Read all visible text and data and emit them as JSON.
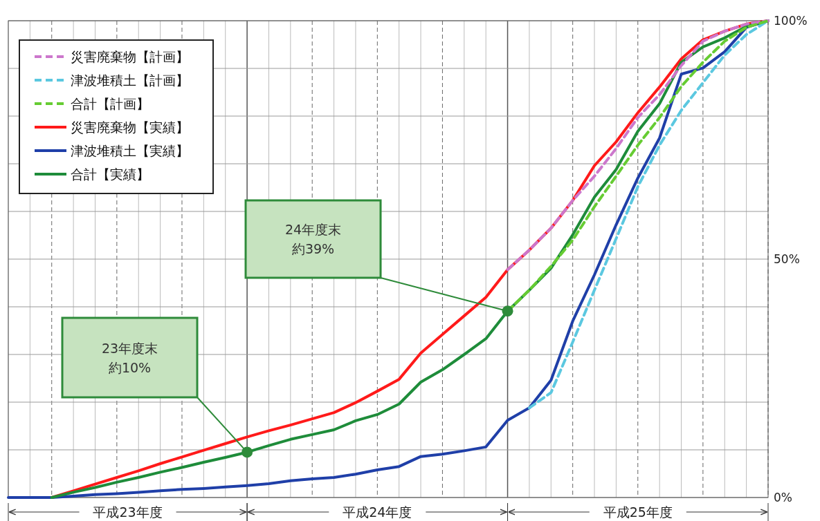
{
  "chart_data": {
    "type": "line",
    "categories": [
      null,
      null,
      null,
      null,
      null,
      null,
      null,
      null,
      null,
      null,
      null,
      null,
      null,
      null,
      null,
      null,
      null,
      null,
      null,
      null,
      null,
      null,
      null,
      null,
      null,
      null,
      null,
      null,
      null,
      null,
      null,
      null,
      null,
      null,
      null,
      null
    ],
    "ylim": [
      0,
      100
    ],
    "yticks": [
      {
        "value": 0,
        "label": "0%"
      },
      {
        "value": 10,
        "label": null
      },
      {
        "value": 20,
        "label": null
      },
      {
        "value": 30,
        "label": null
      },
      {
        "value": 40,
        "label": null
      },
      {
        "value": 50,
        "label": "50%"
      },
      {
        "value": 60,
        "label": null
      },
      {
        "value": 70,
        "label": null
      },
      {
        "value": 80,
        "label": null
      },
      {
        "value": 90,
        "label": null
      },
      {
        "value": 100,
        "label": "100%"
      }
    ],
    "grid": true,
    "legend": "top left",
    "line_style": "solid",
    "series": [
      {
        "name": "災害廃棄物【計画】",
        "color": "#cc77cc",
        "line_style": "dashed",
        "values": [
          null,
          null,
          null,
          null,
          null,
          null,
          null,
          null,
          null,
          null,
          null,
          null,
          null,
          null,
          null,
          null,
          null,
          null,
          null,
          null,
          null,
          null,
          null,
          47.8,
          51.9,
          56.5,
          62.3,
          67.4,
          73.2,
          79.7,
          84.5,
          90.6,
          95.7,
          97.8,
          99.3,
          100
        ]
      },
      {
        "name": "津波堆積土【計画】",
        "color": "#5bc8e0",
        "line_style": "dashed",
        "values": [
          null,
          null,
          null,
          null,
          null,
          null,
          null,
          null,
          null,
          null,
          null,
          null,
          null,
          null,
          null,
          null,
          null,
          null,
          null,
          null,
          null,
          null,
          null,
          null,
          18.8,
          22,
          32.6,
          43.5,
          54.3,
          65.2,
          73.9,
          81.2,
          87,
          92.8,
          97.1,
          100
        ]
      },
      {
        "name": "合計【計画】",
        "color": "#66cc33",
        "line_style": "dashed",
        "values": [
          null,
          null,
          null,
          null,
          null,
          null,
          null,
          null,
          null,
          null,
          null,
          null,
          null,
          null,
          null,
          null,
          null,
          null,
          null,
          null,
          null,
          null,
          null,
          39.1,
          43.5,
          48.5,
          54,
          61,
          67.4,
          73.9,
          79.7,
          86.2,
          91.3,
          95.7,
          98.6,
          100
        ]
      },
      {
        "name": "災害廃棄物【実績】",
        "color": "#ff1a1a",
        "values": [
          null,
          null,
          0,
          1.4,
          2.8,
          4.2,
          5.6,
          7.1,
          8.5,
          9.9,
          11.3,
          12.7,
          14,
          15.2,
          16.5,
          17.8,
          19.9,
          22.3,
          24.8,
          30.3,
          34.2,
          38.1,
          42,
          47.8,
          51.9,
          56.5,
          62.3,
          69.6,
          74.6,
          80.7,
          86.1,
          92,
          96,
          97.8,
          99.3,
          100
        ]
      },
      {
        "name": "津波堆積土【実績】",
        "color": "#1f3fa8",
        "values": [
          0,
          0,
          0,
          0.3,
          0.6,
          0.8,
          1.1,
          1.4,
          1.7,
          1.9,
          2.2,
          2.5,
          2.9,
          3.5,
          3.9,
          4.2,
          4.9,
          5.8,
          6.5,
          8.6,
          9.1,
          9.8,
          10.6,
          16.2,
          18.8,
          24.6,
          37,
          46.7,
          57.2,
          67,
          75.4,
          88.8,
          90.1,
          93.5,
          98.6,
          100
        ]
      },
      {
        "name": "合計【実績】",
        "color": "#1e8c3a",
        "values": [
          null,
          null,
          0,
          1.1,
          2.1,
          3.2,
          4.2,
          5.3,
          6.3,
          7.4,
          8.4,
          9.5,
          10.9,
          12.2,
          13.2,
          14.2,
          16.1,
          17.4,
          19.6,
          24.2,
          26.8,
          30,
          33.3,
          39.1,
          43.5,
          48.1,
          55.1,
          63,
          68.8,
          76.8,
          82.6,
          91.3,
          94.5,
          96.4,
          98.8,
          100
        ]
      }
    ],
    "annotations": [
      "23年度末約10%",
      "24年度末約39%",
      "平成23年度",
      "平成24年度",
      "平成25年度"
    ]
  }
}
